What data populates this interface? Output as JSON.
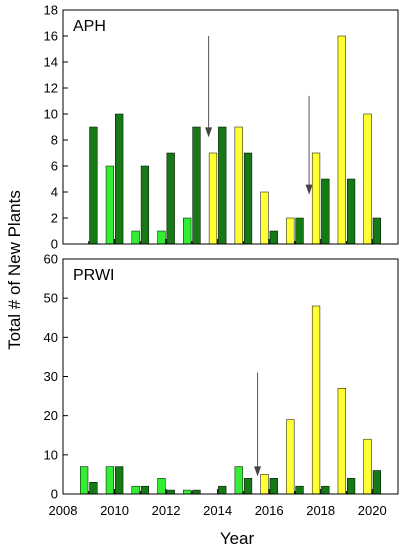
{
  "figure": {
    "ylabel": "Total # of New Plants",
    "xlabel": "Year",
    "x_ticks": [
      "2008",
      "2010",
      "2012",
      "2014",
      "2016",
      "2018",
      "2020"
    ]
  },
  "colors": {
    "light_green": "#33ee33",
    "dark_green": "#157a15",
    "yellow": "#ffff33"
  },
  "chart_data": [
    {
      "type": "bar",
      "title": "APH",
      "xlim": [
        2008,
        2021
      ],
      "ylim": [
        0,
        18
      ],
      "yticks": [
        0,
        2,
        4,
        6,
        8,
        10,
        12,
        14,
        16,
        18
      ],
      "series": [
        {
          "color": "light_green",
          "points": [
            [
              2010,
              6
            ],
            [
              2011,
              1
            ],
            [
              2012,
              1
            ],
            [
              2013,
              2
            ]
          ]
        },
        {
          "color": "dark_green",
          "points": [
            [
              2009,
              9
            ],
            [
              2010,
              10
            ],
            [
              2011,
              6
            ],
            [
              2012,
              7
            ],
            [
              2013,
              9
            ],
            [
              2014,
              9
            ],
            [
              2015,
              7
            ],
            [
              2016,
              1
            ],
            [
              2017,
              2
            ],
            [
              2018,
              5
            ],
            [
              2019,
              5
            ],
            [
              2020,
              2
            ]
          ]
        },
        {
          "color": "yellow",
          "points": [
            [
              2014,
              7
            ],
            [
              2015,
              9
            ],
            [
              2016,
              4
            ],
            [
              2017,
              2
            ],
            [
              2018,
              7
            ],
            [
              2019,
              16
            ],
            [
              2020,
              10
            ]
          ]
        }
      ],
      "arrows": [
        {
          "x": 2013.65,
          "y_from": 16,
          "y_to": 8.2
        },
        {
          "x": 2017.55,
          "y_from": 11.4,
          "y_to": 3.8
        }
      ]
    },
    {
      "type": "bar",
      "title": "PRWI",
      "xlim": [
        2008,
        2021
      ],
      "ylim": [
        0,
        60
      ],
      "yticks": [
        0,
        10,
        20,
        30,
        40,
        50,
        60
      ],
      "series": [
        {
          "color": "light_green",
          "points": [
            [
              2009,
              7
            ],
            [
              2010,
              7
            ],
            [
              2011,
              2
            ],
            [
              2012,
              4
            ],
            [
              2013,
              1
            ],
            [
              2015,
              7
            ]
          ]
        },
        {
          "color": "dark_green",
          "points": [
            [
              2009,
              3
            ],
            [
              2010,
              7
            ],
            [
              2011,
              2
            ],
            [
              2012,
              1
            ],
            [
              2013,
              1
            ],
            [
              2014,
              2
            ],
            [
              2015,
              4
            ],
            [
              2016,
              4
            ],
            [
              2017,
              2
            ],
            [
              2018,
              2
            ],
            [
              2019,
              4
            ],
            [
              2020,
              6
            ]
          ]
        },
        {
          "color": "yellow",
          "points": [
            [
              2016,
              5
            ],
            [
              2017,
              19
            ],
            [
              2018,
              48
            ],
            [
              2019,
              27
            ],
            [
              2020,
              14
            ]
          ]
        }
      ],
      "arrows": [
        {
          "x": 2015.55,
          "y_from": 31,
          "y_to": 4.5
        }
      ]
    }
  ]
}
